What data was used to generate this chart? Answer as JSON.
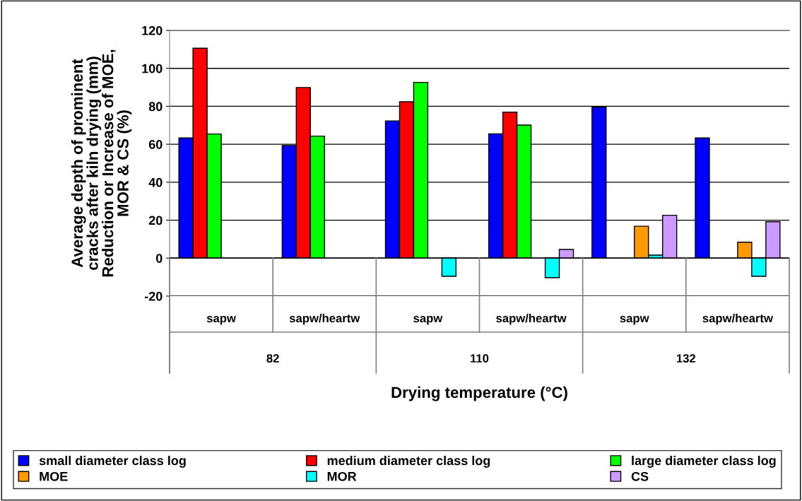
{
  "chart_data": {
    "type": "bar",
    "categories": [
      "sapw",
      "sapw/heartw",
      "sapw",
      "sapw/heartw",
      "sapw",
      "sapw/heartw"
    ],
    "annotations": [
      "82",
      "110",
      "132"
    ],
    "xlabel": "Drying temperature (°C)",
    "ylabel": "Average depth of prominent\ncracks after kiln drying (mm)\nReduction or Increase of MOE,\nMOR & CS (%)",
    "ylim": [
      -20,
      120
    ],
    "yticks": [
      -20,
      0,
      20,
      40,
      60,
      80,
      100,
      120
    ],
    "grid": "y",
    "legend": "bottom",
    "series": [
      {
        "name": "small diameter class log",
        "color": "#0000ff",
        "values": [
          63.3,
          59.3,
          72.3,
          65.5,
          79.6,
          63.3
        ]
      },
      {
        "name": "medium diameter class log",
        "color": "#ff0000",
        "values": [
          110.6,
          89.9,
          82.4,
          76.9,
          null,
          null
        ]
      },
      {
        "name": "large diameter class log",
        "color": "#00ff00",
        "values": [
          65.4,
          64.3,
          92.6,
          70.1,
          null,
          null
        ]
      },
      {
        "name": "MOE",
        "color": "#ff9900",
        "values": [
          null,
          null,
          null,
          null,
          16.8,
          8.4
        ]
      },
      {
        "name": "MOR",
        "color": "#00ffff",
        "values": [
          null,
          null,
          -9.6,
          -10.3,
          1.6,
          -9.6
        ]
      },
      {
        "name": "CS",
        "color": "#cc99ff",
        "values": [
          null,
          null,
          null,
          4.6,
          22.6,
          19.2
        ]
      }
    ]
  }
}
